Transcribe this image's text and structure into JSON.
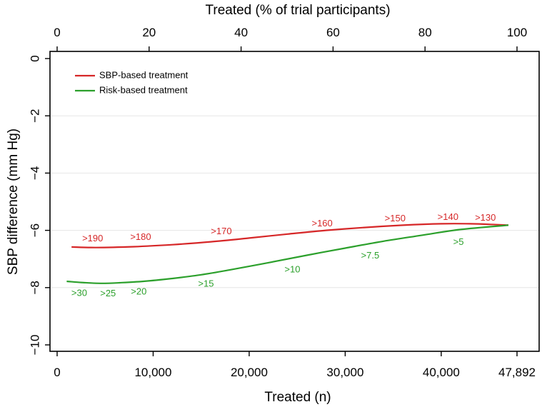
{
  "chart_data": {
    "type": "line",
    "xlabel": "Treated (n)",
    "xlabel_top": "Treated (% of trial participants)",
    "ylabel": "SBP difference (mm Hg)",
    "xlim": [
      0,
      48500
    ],
    "ylim": [
      -10,
      0
    ],
    "x_ticks": [
      0,
      10000,
      20000,
      30000,
      40000,
      47892
    ],
    "x_tick_labels": [
      "0",
      "10,000",
      "20,000",
      "30,000",
      "40,000",
      "47,892"
    ],
    "x_top_ticks_pct": [
      0,
      20,
      40,
      60,
      80,
      100
    ],
    "x_top_tick_labels": [
      "0",
      "20",
      "40",
      "60",
      "80",
      "100"
    ],
    "total_n": 47892,
    "y_ticks": [
      0,
      -2,
      -4,
      -6,
      -8,
      -10
    ],
    "y_tick_labels": [
      "0",
      "−2",
      "−4",
      "−6",
      "−8",
      "−10"
    ],
    "grid": "horizontal",
    "legend_position": "top-left",
    "series": [
      {
        "name": "SBP-based treatment",
        "color": "#d62728",
        "x": [
          1500,
          4000,
          8000,
          12000,
          16000,
          20000,
          24000,
          28000,
          32000,
          36000,
          40000,
          43000,
          45000,
          47000
        ],
        "y": [
          -6.58,
          -6.6,
          -6.57,
          -6.5,
          -6.4,
          -6.27,
          -6.13,
          -6.0,
          -5.9,
          -5.82,
          -5.77,
          -5.77,
          -5.79,
          -5.82
        ],
        "annotations": [
          {
            "label": ">190",
            "x": 3700,
            "y": -6.3
          },
          {
            "label": ">180",
            "x": 8700,
            "y": -6.25
          },
          {
            "label": ">170",
            "x": 17100,
            "y": -6.05
          },
          {
            "label": ">160",
            "x": 27600,
            "y": -5.78
          },
          {
            "label": ">150",
            "x": 35200,
            "y": -5.6
          },
          {
            "label": ">140",
            "x": 40700,
            "y": -5.55
          },
          {
            "label": ">130",
            "x": 44600,
            "y": -5.57
          }
        ]
      },
      {
        "name": "Risk-based treatment",
        "color": "#2ca02c",
        "x": [
          1000,
          2500,
          4500,
          6500,
          9000,
          12000,
          15000,
          18000,
          22000,
          26000,
          30000,
          34000,
          38000,
          42000,
          47000
        ],
        "y": [
          -7.78,
          -7.82,
          -7.85,
          -7.83,
          -7.78,
          -7.68,
          -7.55,
          -7.38,
          -7.13,
          -6.87,
          -6.62,
          -6.38,
          -6.17,
          -5.97,
          -5.82
        ],
        "annotations": [
          {
            "label": ">30",
            "x": 2300,
            "y": -8.2
          },
          {
            "label": ">25",
            "x": 5300,
            "y": -8.22
          },
          {
            "label": ">20",
            "x": 8500,
            "y": -8.15
          },
          {
            "label": ">15",
            "x": 15500,
            "y": -7.88
          },
          {
            "label": ">10",
            "x": 24500,
            "y": -7.38
          },
          {
            "label": ">7.5",
            "x": 32600,
            "y": -6.9
          },
          {
            "label": ">5",
            "x": 41800,
            "y": -6.42
          }
        ]
      }
    ]
  }
}
